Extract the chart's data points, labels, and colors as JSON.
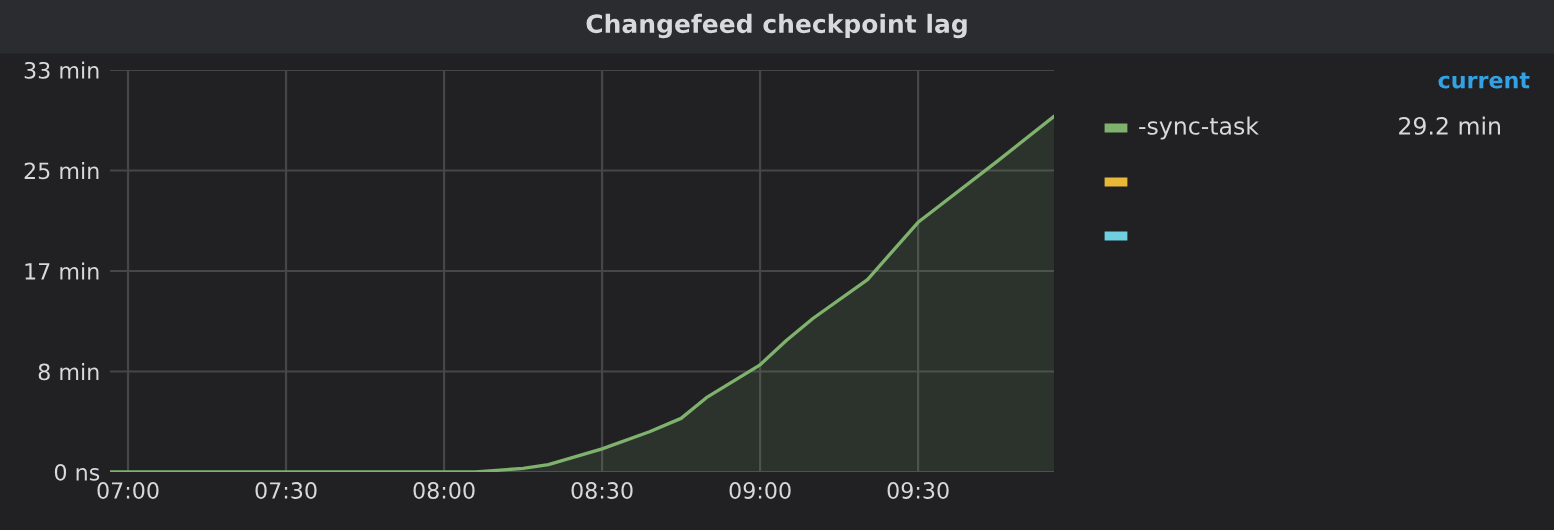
{
  "chart_data": {
    "type": "area",
    "title": "Changefeed checkpoint lag",
    "xlim": [
      6.943,
      9.93
    ],
    "xticks": [
      {
        "value": 7,
        "label": "07:00"
      },
      {
        "value": 7.5,
        "label": "07:30"
      },
      {
        "value": 8,
        "label": "08:00"
      },
      {
        "value": 8.5,
        "label": "08:30"
      },
      {
        "value": 9,
        "label": "09:00"
      },
      {
        "value": 9.5,
        "label": "09:30"
      }
    ],
    "ylim": [
      0,
      33
    ],
    "yticks": [
      {
        "value": 0,
        "label": "0 ns"
      },
      {
        "value": 8.25,
        "label": "8 min"
      },
      {
        "value": 16.5,
        "label": "17 min"
      },
      {
        "value": 24.75,
        "label": "25 min"
      },
      {
        "value": 33,
        "label": "33 min"
      }
    ],
    "grid": true,
    "legend": "right",
    "series": [
      {
        "name": "-sync-task",
        "color": "#7eb26d",
        "x": [
          6.943,
          8.1,
          8.25,
          8.33,
          8.5,
          8.65,
          8.75,
          8.83,
          9.0,
          9.083,
          9.167,
          9.34,
          9.5,
          9.75,
          9.93
        ],
        "values": [
          0,
          0,
          0.3,
          0.6,
          1.9,
          3.3,
          4.4,
          6.1,
          8.8,
          10.8,
          12.6,
          15.8,
          20.5,
          25.5,
          29.2
        ]
      }
    ],
    "annotations": [
      "current",
      "29.2 min"
    ]
  }
}
